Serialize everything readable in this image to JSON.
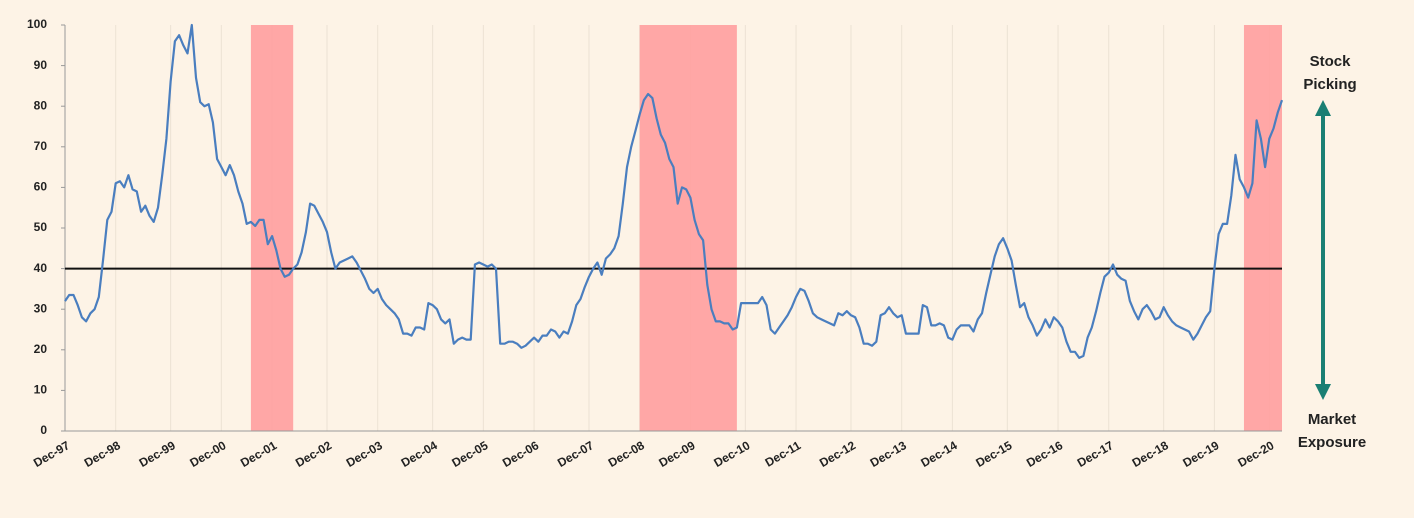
{
  "chart_data": {
    "type": "line",
    "categories": [
      "Dec-97",
      null,
      null,
      null,
      null,
      null,
      null,
      null,
      null,
      null,
      null,
      null,
      "Dec-98",
      null,
      null,
      null,
      null,
      null,
      null,
      null,
      null,
      null,
      null,
      null,
      null,
      "Dec-99",
      null,
      null,
      null,
      null,
      null,
      null,
      null,
      null,
      null,
      null,
      null,
      "Dec-00",
      null,
      null,
      null,
      null,
      null,
      null,
      null,
      null,
      null,
      null,
      null,
      "Dec-01",
      null,
      null,
      null,
      null,
      null,
      null,
      null,
      null,
      null,
      null,
      null,
      null,
      "Dec-02",
      null,
      null,
      null,
      null,
      null,
      null,
      null,
      null,
      null,
      null,
      null,
      "Dec-03",
      null,
      null,
      null,
      null,
      null,
      null,
      null,
      null,
      null,
      null,
      null,
      null,
      "Dec-04",
      null,
      null,
      null,
      null,
      null,
      null,
      null,
      null,
      null,
      null,
      null,
      "Dec-05",
      null,
      null,
      null,
      null,
      null,
      null,
      null,
      null,
      null,
      null,
      null,
      "Dec-06",
      null,
      null,
      null,
      null,
      null,
      null,
      null,
      null,
      null,
      null,
      null,
      null,
      "Dec-07",
      null,
      null,
      null,
      null,
      null,
      null,
      null,
      null,
      null,
      null,
      null,
      "Dec-08",
      null,
      null,
      null,
      null,
      null,
      null,
      null,
      null,
      null,
      null,
      null,
      "Dec-09",
      null,
      null,
      null,
      null,
      null,
      null,
      null,
      null,
      null,
      null,
      null,
      null,
      "Dec-10",
      null,
      null,
      null,
      null,
      null,
      null,
      null,
      null,
      null,
      null,
      null,
      "Dec-11",
      null,
      null,
      null,
      null,
      null,
      null,
      null,
      null,
      null,
      null,
      null,
      null,
      "Dec-12",
      null,
      null,
      null,
      null,
      null,
      null,
      null,
      null,
      null,
      null,
      null,
      "Dec-13",
      null,
      null,
      null,
      null,
      null,
      null,
      null,
      null,
      null,
      null,
      null,
      "Dec-14",
      null,
      null,
      null,
      null,
      null,
      null,
      null,
      null,
      null,
      null,
      null,
      null,
      "Dec-15",
      null,
      null,
      null,
      null,
      null,
      null,
      null,
      null,
      null,
      null,
      null,
      "Dec-16",
      null,
      null,
      null,
      null,
      null,
      null,
      null,
      null,
      null,
      null,
      null,
      "Dec-17",
      null,
      null,
      null,
      null,
      null,
      null,
      null,
      null,
      null,
      null,
      null,
      null,
      "Dec-18",
      null,
      null,
      null,
      null,
      null,
      null,
      null,
      null,
      null,
      null,
      null,
      "Dec-19",
      null,
      null,
      null,
      null,
      null,
      null,
      null,
      null,
      null,
      null,
      null,
      null,
      "Dec-20",
      null,
      null,
      null
    ],
    "values": [
      32,
      33.5,
      33.5,
      31,
      28,
      27,
      29,
      30,
      33,
      42,
      52,
      54,
      61,
      61.5,
      60,
      63,
      59.5,
      59,
      54,
      55.5,
      53,
      51.5,
      55,
      63,
      72,
      86,
      96,
      97.5,
      95,
      93,
      100,
      87,
      81,
      80,
      80.5,
      76,
      67,
      65,
      63,
      65.5,
      63,
      59,
      56,
      51,
      51.5,
      50.5,
      52,
      52,
      46,
      48,
      44.5,
      40,
      38,
      38.5,
      40,
      41,
      44,
      49,
      56,
      55.5,
      53.5,
      51.5,
      49,
      44,
      40,
      41.5,
      42,
      42.5,
      43,
      41.5,
      39.5,
      37.5,
      35,
      34,
      35,
      32.5,
      31,
      30,
      29,
      27.5,
      24,
      24,
      23.5,
      25.5,
      25.5,
      25,
      31.5,
      31,
      30,
      27.5,
      26.5,
      27.5,
      21.5,
      22.5,
      23,
      22.5,
      22.5,
      41,
      41.5,
      41,
      40.5,
      41,
      40,
      21.5,
      21.5,
      22,
      22,
      21.5,
      20.5,
      21,
      22,
      23,
      22,
      23.5,
      23.5,
      25,
      24.5,
      23,
      24.5,
      24,
      27,
      31,
      32.5,
      35.5,
      38,
      40,
      41.5,
      38.5,
      42.5,
      43.5,
      45,
      48,
      56,
      65,
      70,
      74,
      78,
      81.5,
      83,
      82,
      77,
      73,
      71,
      67,
      65,
      56,
      60,
      59.5,
      57.5,
      52,
      48.5,
      47,
      36,
      30,
      27,
      27,
      26.5,
      26.5,
      25,
      25.5,
      31.5,
      31.5,
      31.5,
      31.5,
      31.5,
      33,
      31,
      25,
      24,
      25.5,
      27,
      28.5,
      30.5,
      33,
      35,
      34.5,
      32,
      29,
      28,
      27.5,
      27,
      26.5,
      26,
      29,
      28.5,
      29.5,
      28.5,
      28,
      25.5,
      21.5,
      21.5,
      21,
      22,
      28.5,
      29,
      30.5,
      29,
      28,
      28.5,
      24,
      24,
      24,
      24,
      31,
      30.5,
      26,
      26,
      26.5,
      26,
      23,
      22.5,
      25,
      26,
      26,
      26,
      24.5,
      27.5,
      29,
      34,
      38.5,
      43,
      46,
      47.5,
      45,
      42,
      36,
      30.5,
      31.5,
      28,
      26,
      23.5,
      25,
      27.5,
      25.5,
      28,
      27,
      25.5,
      22,
      19.5,
      19.5,
      18,
      18.5,
      23,
      25.5,
      29.5,
      34,
      38,
      39,
      41,
      38.5,
      37.5,
      37,
      32,
      29.5,
      27.5,
      30,
      31,
      29.5,
      27.5,
      28,
      30.5,
      28.5,
      27,
      26,
      25.5,
      25,
      24.5,
      22.5,
      24,
      26,
      28,
      29.5,
      40,
      48.5,
      51,
      51,
      58,
      68,
      62,
      60,
      57.5,
      61,
      76.5,
      72,
      65,
      72,
      74.5,
      78.5,
      81.5
    ],
    "color": "#4a7ebf",
    "ylim": [
      0,
      100
    ],
    "yticks": [
      0,
      10,
      20,
      30,
      40,
      50,
      60,
      70,
      80,
      90,
      100
    ],
    "grid": true,
    "reference_line": 40,
    "bands": [
      [
        44,
        54
      ],
      [
        136,
        159
      ],
      [
        279,
        288
      ]
    ],
    "band_color": "#ff9f9f",
    "arrow_color": "#1a7f73",
    "top_label": [
      "Stock",
      "Picking"
    ],
    "bottom_label": [
      "Market",
      "Exposure"
    ]
  }
}
